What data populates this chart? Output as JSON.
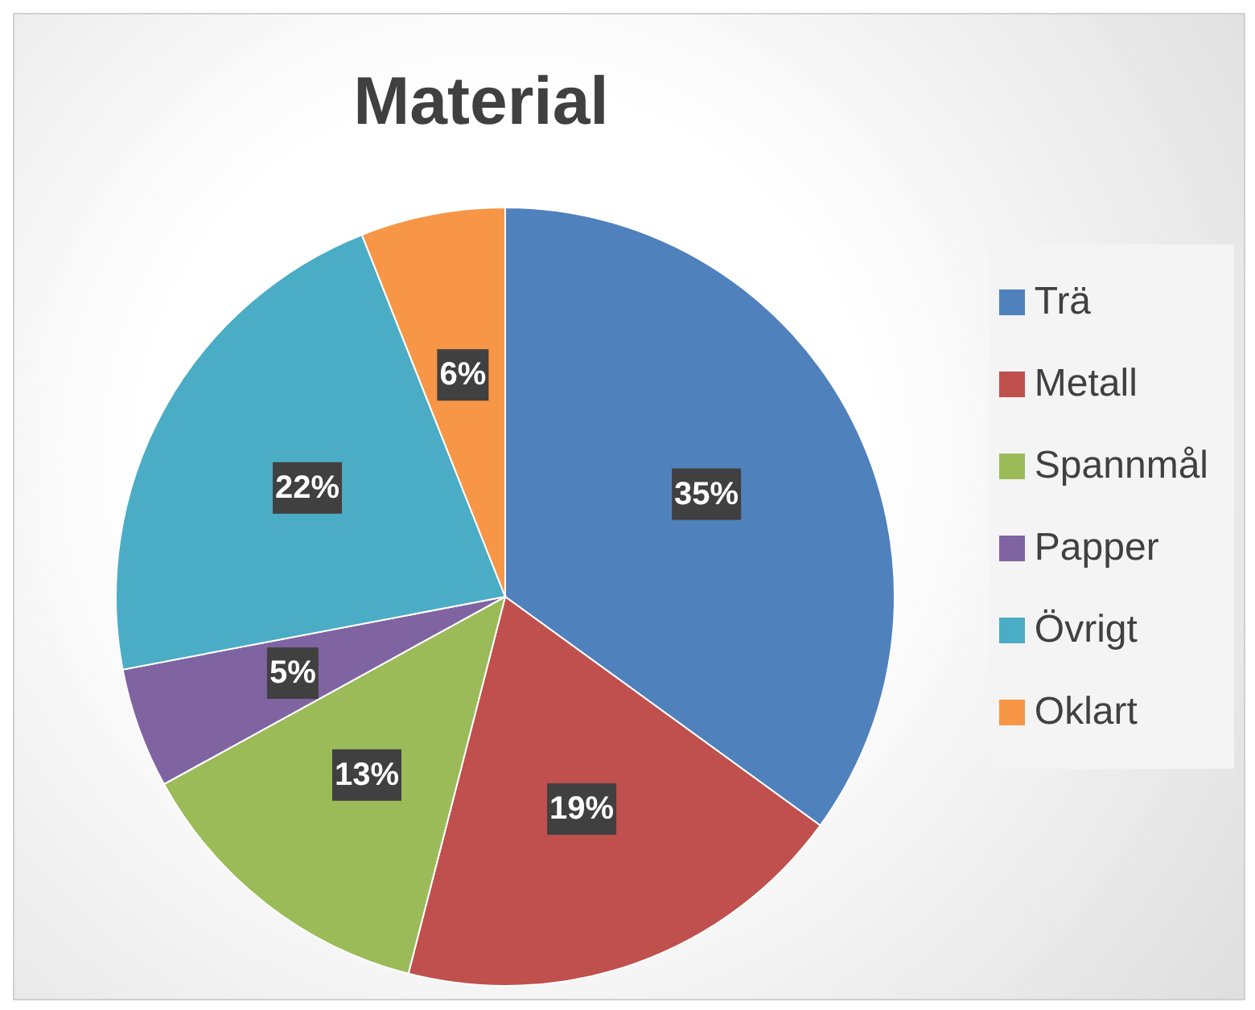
{
  "chart_data": {
    "type": "pie",
    "title": "Material",
    "categories": [
      "Trä",
      "Metall",
      "Spannmål",
      "Papper",
      "Övrigt",
      "Oklart"
    ],
    "values": [
      35,
      19,
      13,
      5,
      22,
      6
    ],
    "value_labels": [
      "35%",
      "19%",
      "13%",
      "5%",
      "22%",
      "6%"
    ],
    "colors": [
      "#4f81bd",
      "#c0504d",
      "#9bbb59",
      "#8064a2",
      "#4bacc6",
      "#f79646"
    ],
    "legend": "right"
  }
}
